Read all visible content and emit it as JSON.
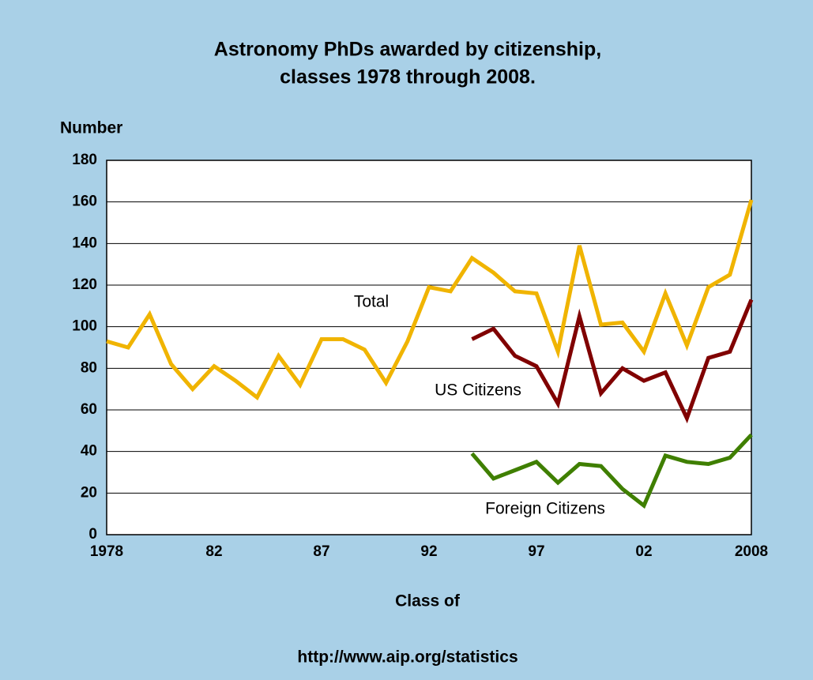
{
  "chart_data": {
    "type": "line",
    "title": [
      "Astronomy PhDs awarded by citizenship,",
      "classes 1978 through 2008."
    ],
    "y_label": "Number",
    "x_label": "Class of",
    "source": "http://www.aip.org/statistics",
    "categories": [
      "1978",
      null,
      null,
      null,
      null,
      "82",
      null,
      null,
      null,
      null,
      "87",
      null,
      null,
      null,
      null,
      "92",
      null,
      null,
      null,
      null,
      "97",
      null,
      null,
      null,
      null,
      "02",
      null,
      null,
      null,
      null,
      "2008"
    ],
    "series": [
      {
        "name": "Total",
        "color": "#f0b400",
        "values": [
          93,
          90,
          106,
          82,
          70,
          81,
          74,
          66,
          86,
          72,
          94,
          94,
          89,
          73,
          93,
          119,
          117,
          133,
          126,
          117,
          116,
          88,
          139,
          101,
          102,
          88,
          116,
          91,
          119,
          125,
          161
        ]
      },
      {
        "name": "US Citizens",
        "color": "#800000",
        "values": [
          null,
          null,
          null,
          null,
          null,
          null,
          null,
          null,
          null,
          null,
          null,
          null,
          null,
          null,
          null,
          null,
          null,
          94,
          99,
          86,
          81,
          63,
          105,
          68,
          80,
          74,
          78,
          56,
          85,
          88,
          113
        ]
      },
      {
        "name": "Foreign Citizens",
        "color": "#3f7f00",
        "values": [
          null,
          null,
          null,
          null,
          null,
          null,
          null,
          null,
          null,
          null,
          null,
          null,
          null,
          null,
          null,
          null,
          null,
          39,
          27,
          31,
          35,
          25,
          34,
          33,
          22,
          14,
          38,
          35,
          34,
          37,
          48
        ]
      }
    ],
    "ylim": [
      0,
      180
    ],
    "yticks": [
      0,
      20,
      40,
      60,
      80,
      100,
      120,
      140,
      160,
      180
    ],
    "grid": true
  }
}
